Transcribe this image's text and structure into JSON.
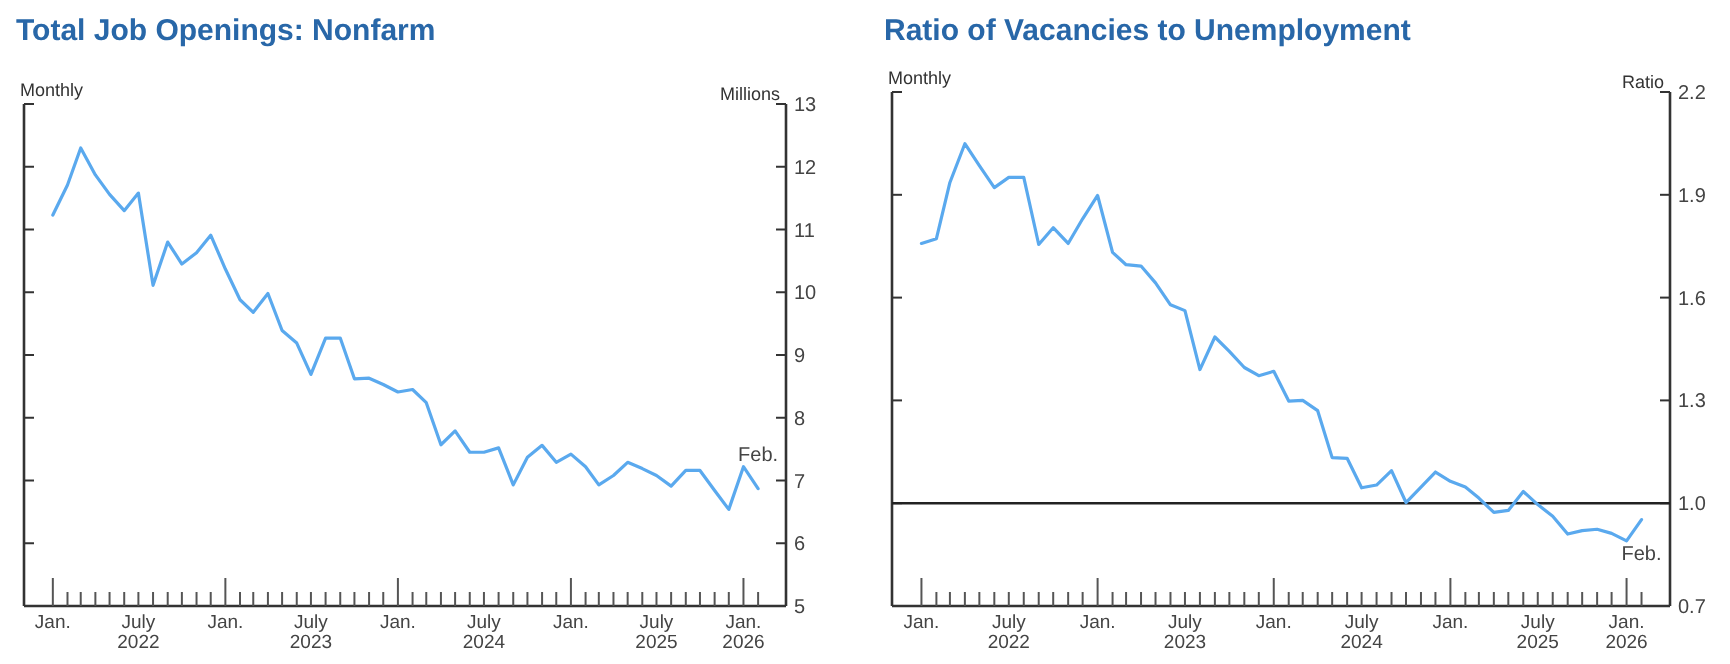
{
  "chart_data": [
    {
      "type": "line",
      "title": "Total Job Openings: Nonfarm",
      "ylabel": "Millions",
      "annotations": [
        "Monthly",
        {
          "text": "Feb.",
          "x": "2026-02",
          "y": 6.87
        }
      ],
      "x": [
        "2022-01",
        "2022-02",
        "2022-03",
        "2022-04",
        "2022-05",
        "2022-06",
        "2022-07",
        "2022-08",
        "2022-09",
        "2022-10",
        "2022-11",
        "2022-12",
        "2023-01",
        "2023-02",
        "2023-03",
        "2023-04",
        "2023-05",
        "2023-06",
        "2023-07",
        "2023-08",
        "2023-09",
        "2023-10",
        "2023-11",
        "2023-12",
        "2024-01",
        "2024-02",
        "2024-03",
        "2024-04",
        "2024-05",
        "2024-06",
        "2024-07",
        "2024-08",
        "2024-09",
        "2024-10",
        "2024-11",
        "2024-12",
        "2025-01",
        "2025-02",
        "2025-03",
        "2025-04",
        "2025-05",
        "2025-06",
        "2025-07",
        "2025-08",
        "2025-09",
        "2025-10",
        "2025-11",
        "2025-12",
        "2026-01",
        "2026-02"
      ],
      "series": [
        {
          "color": "#5aa9ee",
          "values": [
            11.23,
            11.71,
            12.3,
            11.87,
            11.56,
            11.3,
            11.58,
            10.11,
            10.8,
            10.45,
            10.63,
            10.91,
            10.37,
            9.88,
            9.68,
            9.98,
            9.39,
            9.19,
            8.69,
            9.27,
            9.27,
            8.62,
            8.63,
            8.53,
            8.41,
            8.45,
            8.24,
            7.57,
            7.79,
            7.45,
            7.45,
            7.52,
            6.93,
            7.37,
            7.56,
            7.29,
            7.42,
            7.22,
            6.93,
            7.08,
            7.29,
            7.19,
            7.08,
            6.91,
            7.16,
            7.16,
            6.84,
            6.54,
            7.22,
            6.87
          ]
        }
      ],
      "xlim": [
        "2021-11",
        "2026-04"
      ],
      "xticks": [
        {
          "value": "2022-01",
          "label": "Jan."
        },
        {
          "value": "2022-02",
          "label": null
        },
        {
          "value": "2022-03",
          "label": null
        },
        {
          "value": "2022-04",
          "label": null
        },
        {
          "value": "2022-05",
          "label": null
        },
        {
          "value": "2022-06",
          "label": null
        },
        {
          "value": "2022-07",
          "label": "July 2022"
        },
        {
          "value": "2022-08",
          "label": null
        },
        {
          "value": "2022-09",
          "label": null
        },
        {
          "value": "2022-10",
          "label": null
        },
        {
          "value": "2022-11",
          "label": null
        },
        {
          "value": "2022-12",
          "label": null
        },
        {
          "value": "2023-01",
          "label": "Jan."
        },
        {
          "value": "2023-02",
          "label": null
        },
        {
          "value": "2023-03",
          "label": null
        },
        {
          "value": "2023-04",
          "label": null
        },
        {
          "value": "2023-05",
          "label": null
        },
        {
          "value": "2023-06",
          "label": null
        },
        {
          "value": "2023-07",
          "label": "July 2023"
        },
        {
          "value": "2023-08",
          "label": null
        },
        {
          "value": "2023-09",
          "label": null
        },
        {
          "value": "2023-10",
          "label": null
        },
        {
          "value": "2023-11",
          "label": null
        },
        {
          "value": "2023-12",
          "label": null
        },
        {
          "value": "2024-01",
          "label": "Jan."
        },
        {
          "value": "2024-02",
          "label": null
        },
        {
          "value": "2024-03",
          "label": null
        },
        {
          "value": "2024-04",
          "label": null
        },
        {
          "value": "2024-05",
          "label": null
        },
        {
          "value": "2024-06",
          "label": null
        },
        {
          "value": "2024-07",
          "label": "July 2024"
        },
        {
          "value": "2024-08",
          "label": null
        },
        {
          "value": "2024-09",
          "label": null
        },
        {
          "value": "2024-10",
          "label": null
        },
        {
          "value": "2024-11",
          "label": null
        },
        {
          "value": "2024-12",
          "label": null
        },
        {
          "value": "2025-01",
          "label": "Jan."
        },
        {
          "value": "2025-02",
          "label": null
        },
        {
          "value": "2025-03",
          "label": null
        },
        {
          "value": "2025-04",
          "label": null
        },
        {
          "value": "2025-05",
          "label": null
        },
        {
          "value": "2025-06",
          "label": null
        },
        {
          "value": "2025-07",
          "label": "July 2025"
        },
        {
          "value": "2025-08",
          "label": null
        },
        {
          "value": "2025-09",
          "label": null
        },
        {
          "value": "2025-10",
          "label": null
        },
        {
          "value": "2025-11",
          "label": null
        },
        {
          "value": "2025-12",
          "label": null
        },
        {
          "value": "2026-01",
          "label": "Jan. 2026"
        },
        {
          "value": "2026-02",
          "label": null
        }
      ],
      "ylim": [
        5,
        13
      ],
      "yticks": [
        5,
        6,
        7,
        8,
        9,
        10,
        11,
        12,
        13
      ],
      "grid": false
    },
    {
      "type": "line",
      "title": "Ratio of Vacancies to Unemployment",
      "ylabel": "Ratio",
      "annotations": [
        "Monthly",
        {
          "text": "Feb.",
          "x": "2026-02",
          "y": 0.952
        }
      ],
      "x": [
        "2022-01",
        "2022-02",
        "2022-03",
        "2022-04",
        "2022-05",
        "2022-06",
        "2022-07",
        "2022-08",
        "2022-09",
        "2022-10",
        "2022-11",
        "2022-12",
        "2023-01",
        "2023-02",
        "2023-03",
        "2023-04",
        "2023-05",
        "2023-06",
        "2023-07",
        "2023-08",
        "2023-09",
        "2023-10",
        "2023-11",
        "2023-12",
        "2024-01",
        "2024-02",
        "2024-03",
        "2024-04",
        "2024-05",
        "2024-06",
        "2024-07",
        "2024-08",
        "2024-09",
        "2024-10",
        "2024-11",
        "2024-12",
        "2025-01",
        "2025-02",
        "2025-03",
        "2025-04",
        "2025-05",
        "2025-06",
        "2025-07",
        "2025-08",
        "2025-09",
        "2025-10",
        "2025-11",
        "2025-12",
        "2026-01",
        "2026-02"
      ],
      "series": [
        {
          "color": "#5aa9ee",
          "values": [
            1.758,
            1.772,
            1.936,
            2.049,
            1.985,
            1.921,
            1.951,
            1.951,
            1.755,
            1.804,
            1.758,
            1.83,
            1.898,
            1.732,
            1.696,
            1.692,
            1.643,
            1.579,
            1.562,
            1.39,
            1.485,
            1.443,
            1.396,
            1.372,
            1.385,
            1.298,
            1.3,
            1.27,
            1.133,
            1.131,
            1.045,
            1.053,
            1.095,
            1.002,
            1.047,
            1.091,
            1.064,
            1.047,
            1.015,
            0.973,
            0.979,
            1.034,
            0.996,
            0.962,
            0.91,
            0.92,
            0.924,
            0.912,
            0.89,
            0.952
          ]
        }
      ],
      "xlim": [
        "2021-11",
        "2026-04"
      ],
      "xticks": [
        {
          "value": "2022-01",
          "label": "Jan."
        },
        {
          "value": "2022-02",
          "label": null
        },
        {
          "value": "2022-03",
          "label": null
        },
        {
          "value": "2022-04",
          "label": null
        },
        {
          "value": "2022-05",
          "label": null
        },
        {
          "value": "2022-06",
          "label": null
        },
        {
          "value": "2022-07",
          "label": "July 2022"
        },
        {
          "value": "2022-08",
          "label": null
        },
        {
          "value": "2022-09",
          "label": null
        },
        {
          "value": "2022-10",
          "label": null
        },
        {
          "value": "2022-11",
          "label": null
        },
        {
          "value": "2022-12",
          "label": null
        },
        {
          "value": "2023-01",
          "label": "Jan."
        },
        {
          "value": "2023-02",
          "label": null
        },
        {
          "value": "2023-03",
          "label": null
        },
        {
          "value": "2023-04",
          "label": null
        },
        {
          "value": "2023-05",
          "label": null
        },
        {
          "value": "2023-06",
          "label": null
        },
        {
          "value": "2023-07",
          "label": "July 2023"
        },
        {
          "value": "2023-08",
          "label": null
        },
        {
          "value": "2023-09",
          "label": null
        },
        {
          "value": "2023-10",
          "label": null
        },
        {
          "value": "2023-11",
          "label": null
        },
        {
          "value": "2023-12",
          "label": null
        },
        {
          "value": "2024-01",
          "label": "Jan."
        },
        {
          "value": "2024-02",
          "label": null
        },
        {
          "value": "2024-03",
          "label": null
        },
        {
          "value": "2024-04",
          "label": null
        },
        {
          "value": "2024-05",
          "label": null
        },
        {
          "value": "2024-06",
          "label": null
        },
        {
          "value": "2024-07",
          "label": "July 2024"
        },
        {
          "value": "2024-08",
          "label": null
        },
        {
          "value": "2024-09",
          "label": null
        },
        {
          "value": "2024-10",
          "label": null
        },
        {
          "value": "2024-11",
          "label": null
        },
        {
          "value": "2024-12",
          "label": null
        },
        {
          "value": "2025-01",
          "label": "Jan."
        },
        {
          "value": "2025-02",
          "label": null
        },
        {
          "value": "2025-03",
          "label": null
        },
        {
          "value": "2025-04",
          "label": null
        },
        {
          "value": "2025-05",
          "label": null
        },
        {
          "value": "2025-06",
          "label": null
        },
        {
          "value": "2025-07",
          "label": "July 2025"
        },
        {
          "value": "2025-08",
          "label": null
        },
        {
          "value": "2025-09",
          "label": null
        },
        {
          "value": "2025-10",
          "label": null
        },
        {
          "value": "2025-11",
          "label": null
        },
        {
          "value": "2025-12",
          "label": null
        },
        {
          "value": "2026-01",
          "label": "Jan. 2026"
        },
        {
          "value": "2026-02",
          "label": null
        }
      ],
      "ylim": [
        0.7,
        2.2
      ],
      "yticks": [
        0.7,
        {
          "value": 1,
          "label": "1.0"
        },
        1.3,
        1.6,
        1.9,
        2.2
      ],
      "ref_lines": [
        {
          "axis": "y",
          "value": 1,
          "color": "#222222"
        }
      ],
      "grid": false
    }
  ]
}
